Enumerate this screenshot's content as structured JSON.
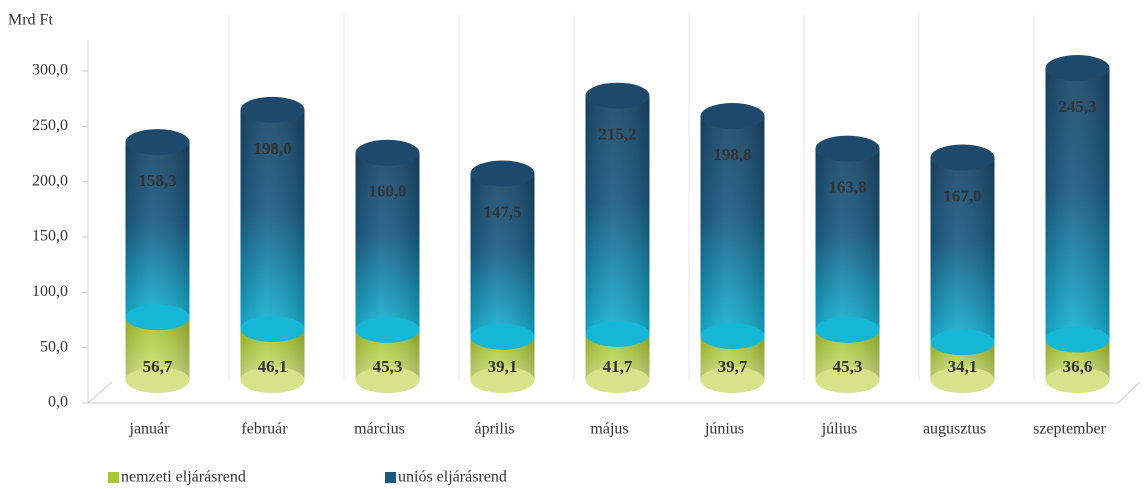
{
  "chart_data": {
    "type": "bar",
    "stacked": true,
    "y_axis_label": "Mrd Ft",
    "categories": [
      "január",
      "február",
      "március",
      "április",
      "május",
      "június",
      "július",
      "augusztus",
      "szeptember"
    ],
    "series": [
      {
        "name": "nemzeti eljárásrend",
        "color": "#a8c832",
        "values": [
          56.7,
          46.1,
          45.3,
          39.1,
          41.7,
          39.7,
          45.3,
          34.1,
          36.6
        ],
        "value_labels": [
          "56,7",
          "46,1",
          "45,3",
          "39,1",
          "41,7",
          "39,7",
          "45,3",
          "34,1",
          "36,6"
        ]
      },
      {
        "name": "uniós eljárásrend",
        "color": "#1b5a80",
        "values": [
          158.3,
          198.0,
          160.0,
          147.5,
          215.2,
          198.8,
          163.8,
          167.0,
          245.3
        ],
        "value_labels": [
          "158,3",
          "198,0",
          "160,0",
          "147,5",
          "215,2",
          "198,8",
          "163,8",
          "167,0",
          "245,3"
        ]
      }
    ],
    "ylim": [
      0,
      300
    ],
    "yticks": [
      {
        "value": 0,
        "label": "0,0"
      },
      {
        "value": 50,
        "label": "50,0"
      },
      {
        "value": 100,
        "label": "100,0"
      },
      {
        "value": 150,
        "label": "150,0"
      },
      {
        "value": 200,
        "label": "200,0"
      },
      {
        "value": 250,
        "label": "250,0"
      },
      {
        "value": 300,
        "label": "300,0"
      }
    ],
    "grid": false,
    "legend": "bottom"
  }
}
